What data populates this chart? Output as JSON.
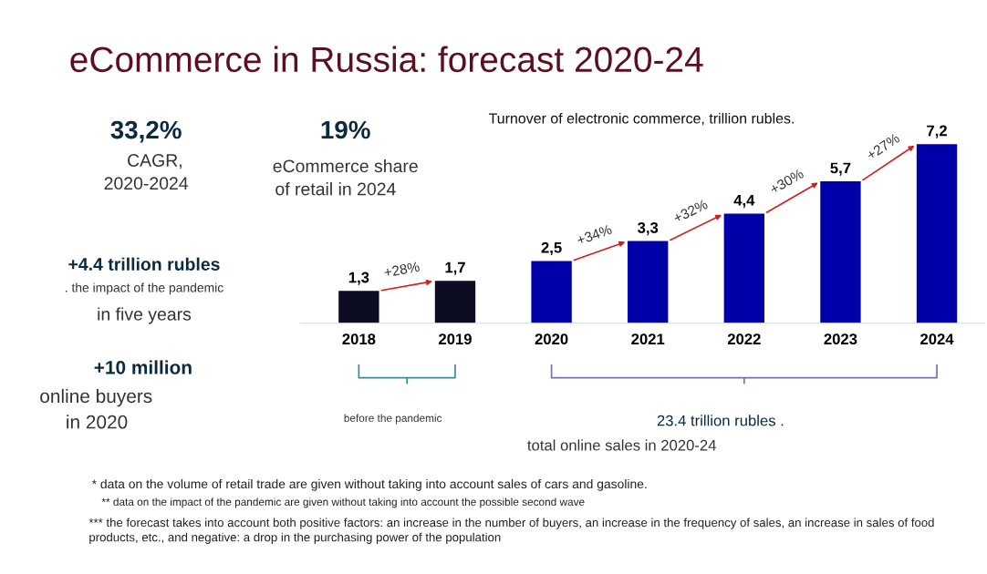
{
  "chart_data": {
    "type": "bar",
    "title": "eCommerce in Russia: forecast 2020-24",
    "subtitle": "Turnover of electronic commerce, trillion rubles.",
    "categories": [
      "2018",
      "2019",
      "2020",
      "2021",
      "2022",
      "2023",
      "2024"
    ],
    "values": [
      1.3,
      1.7,
      2.5,
      3.3,
      4.4,
      5.7,
      7.2
    ],
    "colors": [
      "#0b0b22",
      "#0b0b22",
      "#0000a8",
      "#0000a8",
      "#0000a8",
      "#0000a8",
      "#0000a8"
    ],
    "value_labels": [
      "1,3",
      "1,7",
      "2,5",
      "3,3",
      "4,4",
      "5,7",
      "7,2"
    ],
    "annotations": [
      "33,2%",
      "CAGR,",
      "2020-2024",
      "19%",
      "eCommerce share",
      "of retail in 2024",
      "+4.4 trillion rubles",
      ". the impact of the pandemic",
      "in five years",
      "+10 million",
      "online buyers",
      "in 2020",
      "before the pandemic",
      "23.4 trillion rubles .",
      "total online sales in 2020-24",
      "* data on the volume of retail trade are given without taking into account sales of cars and gasoline.",
      "** data on the impact of the pandemic are given without taking into account the possible second wave",
      "*** the forecast takes into account both positive factors: an increase in the number of buyers, an increase in the frequency of sales, an increase in sales of food\nproducts, etc., and negative: a drop in the purchasing power of the population",
      {
        "text": "+28%",
        "x": "2018",
        "y": 1.3
      },
      {
        "text": "+34%",
        "x": "2020",
        "y": 2.5
      },
      {
        "text": "+32%",
        "x": "2021",
        "y": 3.3
      },
      {
        "text": "+30%",
        "x": "2022",
        "y": 4.4
      },
      {
        "text": "+27%",
        "x": "2023",
        "y": 5.7
      }
    ]
  }
}
